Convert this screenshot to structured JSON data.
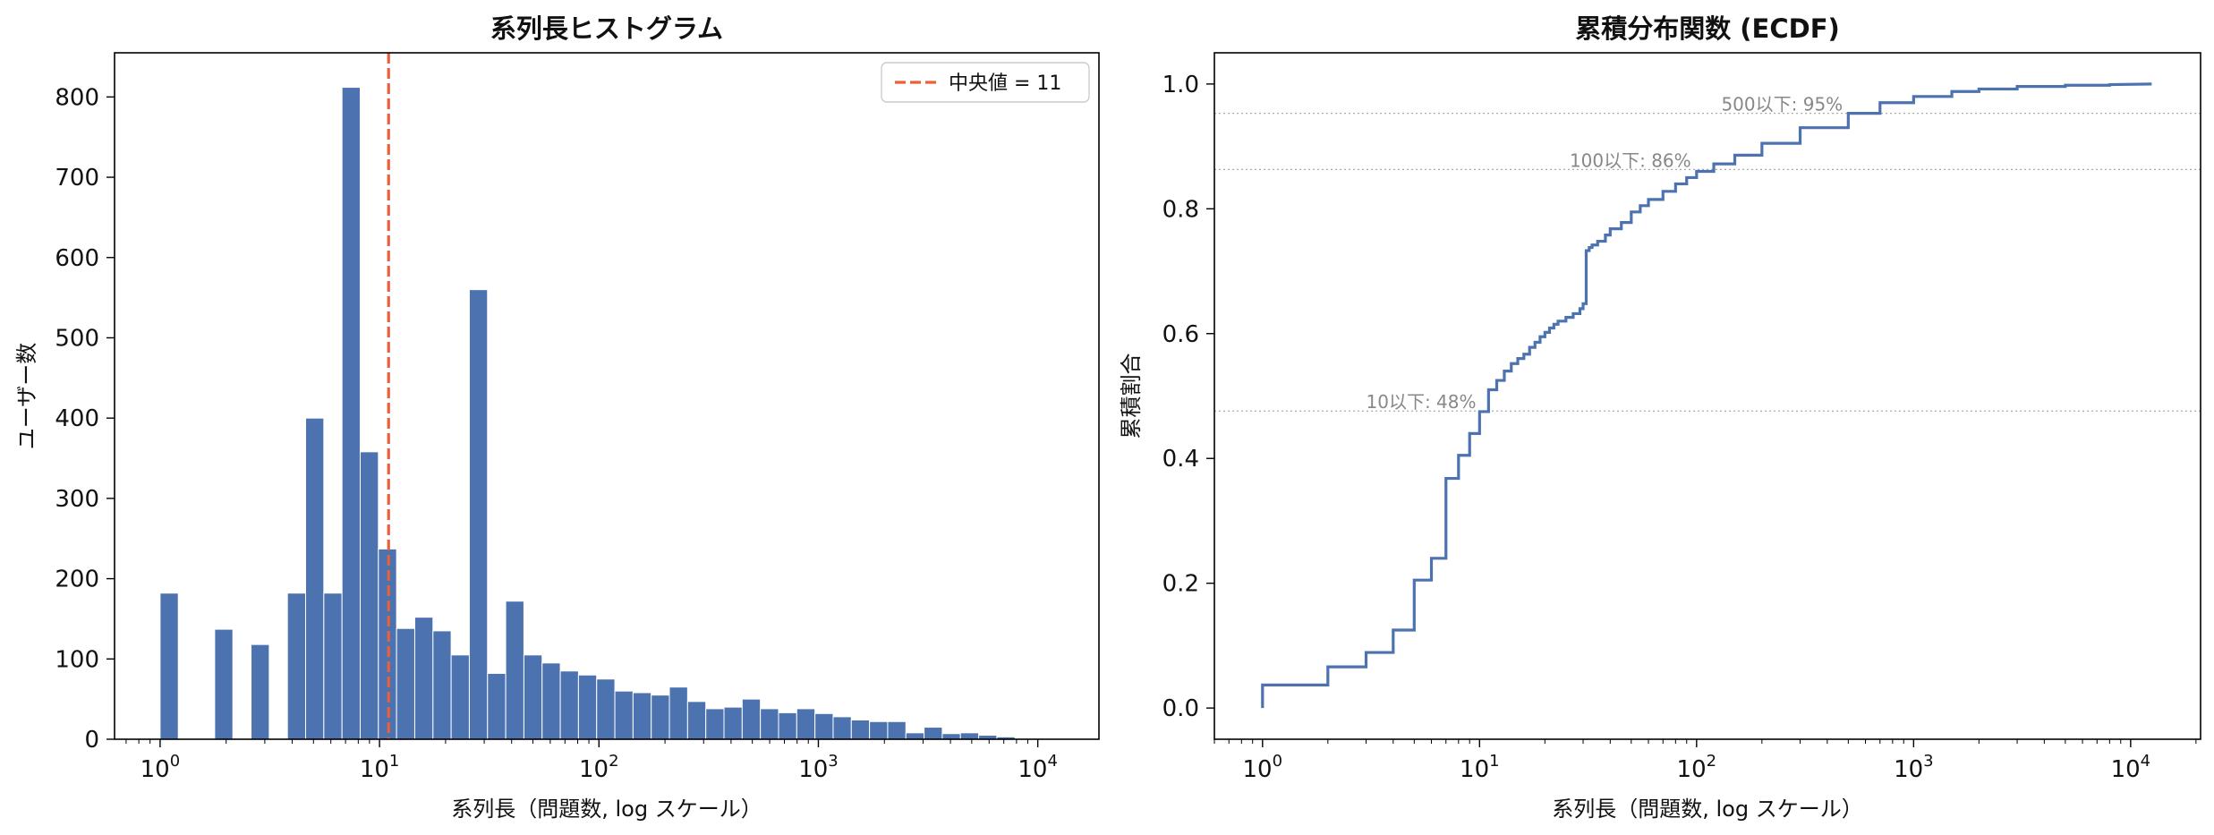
{
  "chart_data": [
    {
      "type": "bar",
      "title": "系列長ヒストグラム",
      "xlabel": "系列長（問題数, log スケール）",
      "ylabel": "ユーザー数",
      "xscale": "log",
      "xlim": [
        0.62,
        19000
      ],
      "ylim": [
        0,
        855
      ],
      "yticks": [
        0,
        100,
        200,
        300,
        400,
        500,
        600,
        700,
        800
      ],
      "xticks": [
        {
          "base": "10",
          "exp": "0",
          "value": 1
        },
        {
          "base": "10",
          "exp": "1",
          "value": 10
        },
        {
          "base": "10",
          "exp": "2",
          "value": 100
        },
        {
          "base": "10",
          "exp": "3",
          "value": 1000
        },
        {
          "base": "10",
          "exp": "4",
          "value": 10000
        }
      ],
      "bin_edges_log10": [
        0.0,
        0.0829,
        0.1658,
        0.2487,
        0.3316,
        0.4145,
        0.4974,
        0.5803,
        0.6632,
        0.7461,
        0.829,
        0.9119,
        0.9948,
        1.0777,
        1.1606,
        1.2435,
        1.3264,
        1.4093,
        1.4922,
        1.5751,
        1.658,
        1.7409,
        1.8238,
        1.9067,
        1.9896,
        2.0725,
        2.1554,
        2.2383,
        2.3212,
        2.4041,
        2.487,
        2.5699,
        2.6528,
        2.7357,
        2.8186,
        2.9015,
        2.9844,
        3.0673,
        3.1502,
        3.2331,
        3.316,
        3.3989,
        3.4818,
        3.5647,
        3.6476,
        3.7305,
        3.8134,
        3.8963,
        3.9792,
        4.0621,
        4.145
      ],
      "counts": [
        182,
        0,
        0,
        137,
        0,
        118,
        0,
        182,
        400,
        182,
        812,
        358,
        237,
        138,
        152,
        135,
        105,
        560,
        82,
        172,
        105,
        95,
        85,
        80,
        75,
        60,
        58,
        55,
        65,
        47,
        38,
        40,
        50,
        38,
        33,
        38,
        32,
        28,
        24,
        22,
        22,
        8,
        15,
        7,
        8,
        5,
        3,
        1,
        1,
        1
      ],
      "bar_color": "#4c72b0",
      "median": {
        "label": "中央値 = 11",
        "value": 11,
        "color": "#e8603c"
      },
      "legend_position": "upper right"
    },
    {
      "type": "line",
      "step": true,
      "title": "累積分布関数 (ECDF)",
      "xlabel": "系列長（問題数, log スケール）",
      "ylabel": "累積割合",
      "xscale": "log",
      "xlim": [
        0.6,
        21000
      ],
      "ylim": [
        -0.05,
        1.05
      ],
      "yticks": [
        "0.0",
        "0.2",
        "0.4",
        "0.6",
        "0.8",
        "1.0"
      ],
      "xticks": [
        {
          "base": "10",
          "exp": "0",
          "value": 1
        },
        {
          "base": "10",
          "exp": "1",
          "value": 10
        },
        {
          "base": "10",
          "exp": "2",
          "value": 100
        },
        {
          "base": "10",
          "exp": "3",
          "value": 1000
        },
        {
          "base": "10",
          "exp": "4",
          "value": 10000
        }
      ],
      "line_color": "#4c72b0",
      "step_points": [
        [
          1,
          0.0
        ],
        [
          1,
          0.037
        ],
        [
          2,
          0.037
        ],
        [
          2,
          0.066
        ],
        [
          3,
          0.066
        ],
        [
          3,
          0.089
        ],
        [
          4,
          0.089
        ],
        [
          4,
          0.125
        ],
        [
          5,
          0.125
        ],
        [
          5,
          0.205
        ],
        [
          6,
          0.205
        ],
        [
          6,
          0.24
        ],
        [
          7,
          0.24
        ],
        [
          7,
          0.368
        ],
        [
          8,
          0.368
        ],
        [
          8,
          0.405
        ],
        [
          9,
          0.405
        ],
        [
          9,
          0.44
        ],
        [
          10,
          0.44
        ],
        [
          10,
          0.475
        ],
        [
          11,
          0.475
        ],
        [
          11,
          0.51
        ],
        [
          12,
          0.51
        ],
        [
          12,
          0.525
        ],
        [
          13,
          0.525
        ],
        [
          13,
          0.54
        ],
        [
          14,
          0.54
        ],
        [
          14,
          0.552
        ],
        [
          15,
          0.552
        ],
        [
          15,
          0.56
        ],
        [
          16,
          0.56
        ],
        [
          16,
          0.567
        ],
        [
          17,
          0.567
        ],
        [
          17,
          0.578
        ],
        [
          18,
          0.578
        ],
        [
          18,
          0.586
        ],
        [
          19,
          0.586
        ],
        [
          19,
          0.595
        ],
        [
          20,
          0.595
        ],
        [
          20,
          0.602
        ],
        [
          21,
          0.602
        ],
        [
          21,
          0.609
        ],
        [
          22,
          0.609
        ],
        [
          22,
          0.615
        ],
        [
          23,
          0.615
        ],
        [
          23,
          0.62
        ],
        [
          25,
          0.62
        ],
        [
          25,
          0.626
        ],
        [
          27,
          0.626
        ],
        [
          27,
          0.632
        ],
        [
          29,
          0.632
        ],
        [
          29,
          0.64
        ],
        [
          30,
          0.64
        ],
        [
          30,
          0.648
        ],
        [
          31,
          0.648
        ],
        [
          31,
          0.733
        ],
        [
          32,
          0.733
        ],
        [
          32,
          0.738
        ],
        [
          33,
          0.738
        ],
        [
          33,
          0.742
        ],
        [
          35,
          0.742
        ],
        [
          35,
          0.748
        ],
        [
          38,
          0.748
        ],
        [
          38,
          0.758
        ],
        [
          40,
          0.758
        ],
        [
          40,
          0.768
        ],
        [
          45,
          0.768
        ],
        [
          45,
          0.778
        ],
        [
          50,
          0.778
        ],
        [
          50,
          0.795
        ],
        [
          55,
          0.795
        ],
        [
          55,
          0.805
        ],
        [
          60,
          0.805
        ],
        [
          60,
          0.815
        ],
        [
          70,
          0.815
        ],
        [
          70,
          0.828
        ],
        [
          80,
          0.828
        ],
        [
          80,
          0.84
        ],
        [
          90,
          0.84
        ],
        [
          90,
          0.85
        ],
        [
          100,
          0.85
        ],
        [
          100,
          0.86
        ],
        [
          120,
          0.86
        ],
        [
          120,
          0.872
        ],
        [
          150,
          0.872
        ],
        [
          150,
          0.886
        ],
        [
          200,
          0.886
        ],
        [
          200,
          0.905
        ],
        [
          300,
          0.905
        ],
        [
          300,
          0.93
        ],
        [
          500,
          0.93
        ],
        [
          500,
          0.953
        ],
        [
          700,
          0.953
        ],
        [
          700,
          0.97
        ],
        [
          1000,
          0.97
        ],
        [
          1000,
          0.98
        ],
        [
          1500,
          0.98
        ],
        [
          1500,
          0.988
        ],
        [
          2000,
          0.988
        ],
        [
          2000,
          0.992
        ],
        [
          3000,
          0.992
        ],
        [
          3000,
          0.996
        ],
        [
          5000,
          0.996
        ],
        [
          5000,
          0.998
        ],
        [
          8000,
          0.998
        ],
        [
          8000,
          0.999
        ],
        [
          12500,
          1.0
        ]
      ],
      "hlines": [
        {
          "y": 0.476,
          "label": "10以下: 48%",
          "label_x": 3.0
        },
        {
          "y": 0.863,
          "label": "100以下: 86%",
          "label_x": 26
        },
        {
          "y": 0.953,
          "label": "500以下: 95%",
          "label_x": 130
        }
      ]
    }
  ]
}
